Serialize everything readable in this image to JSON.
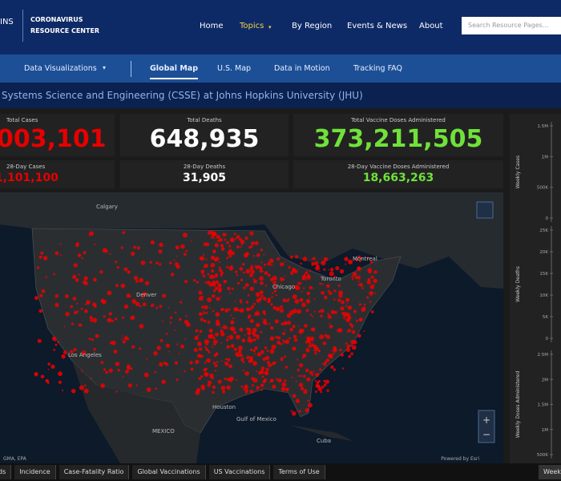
{
  "header": {
    "logo_partial": "INS",
    "logo_line1": "CORONAVIRUS",
    "logo_line2": "RESOURCE CENTER",
    "nav": [
      "Home",
      "Topics",
      "By Region",
      "Events & News",
      "About"
    ],
    "search_placeholder": "Search Resource Pages..."
  },
  "subnav": {
    "dropdown": "Data Visualizations",
    "items": [
      "Global Map",
      "U.S. Map",
      "Data in Motion",
      "Tracking FAQ"
    ]
  },
  "banner": "Systems Science and Engineering (CSSE) at Johns Hopkins University (JHU)",
  "stats": [
    {
      "label": "Total Cases",
      "value": "003,101"
    },
    {
      "label": "Total Deaths",
      "value": "648,935"
    },
    {
      "label": "Total Vaccine Doses Administered",
      "value": "373,211,505"
    },
    {
      "label": "28-Day Cases",
      "value": "1,101,100"
    },
    {
      "label": "28-Day Deaths",
      "value": "31,905"
    },
    {
      "label": "28-Day Vaccine Doses Administered",
      "value": "18,663,263"
    }
  ],
  "map": {
    "labels": [
      "Calgary",
      "Toronto",
      "Montreal",
      "Chicago",
      "Denver",
      "Los Angeles",
      "Houston",
      "Gulf of Mexico",
      "MEXICO",
      "Cuba"
    ],
    "attribution_left": "GMA, EPA",
    "attribution_right": "Powered by Esri"
  },
  "side_panel": {
    "labels": [
      "Weekly Cases",
      "Weekly Deaths",
      "Weekly Doses Administered"
    ],
    "ticks": [
      [
        "1.5M",
        "1M",
        "500K",
        "0"
      ],
      [
        "25K",
        "20K",
        "15K",
        "10K",
        "5K",
        "0"
      ],
      [
        "2.5M",
        "2M",
        "1.5M",
        "1M",
        "500K"
      ]
    ]
  },
  "footer": {
    "tabs": [
      "ds",
      "Incidence",
      "Case-Fatality Ratio",
      "Global Vaccinations",
      "US Vaccinations",
      "Terms of Use"
    ],
    "right": "Weekly"
  }
}
